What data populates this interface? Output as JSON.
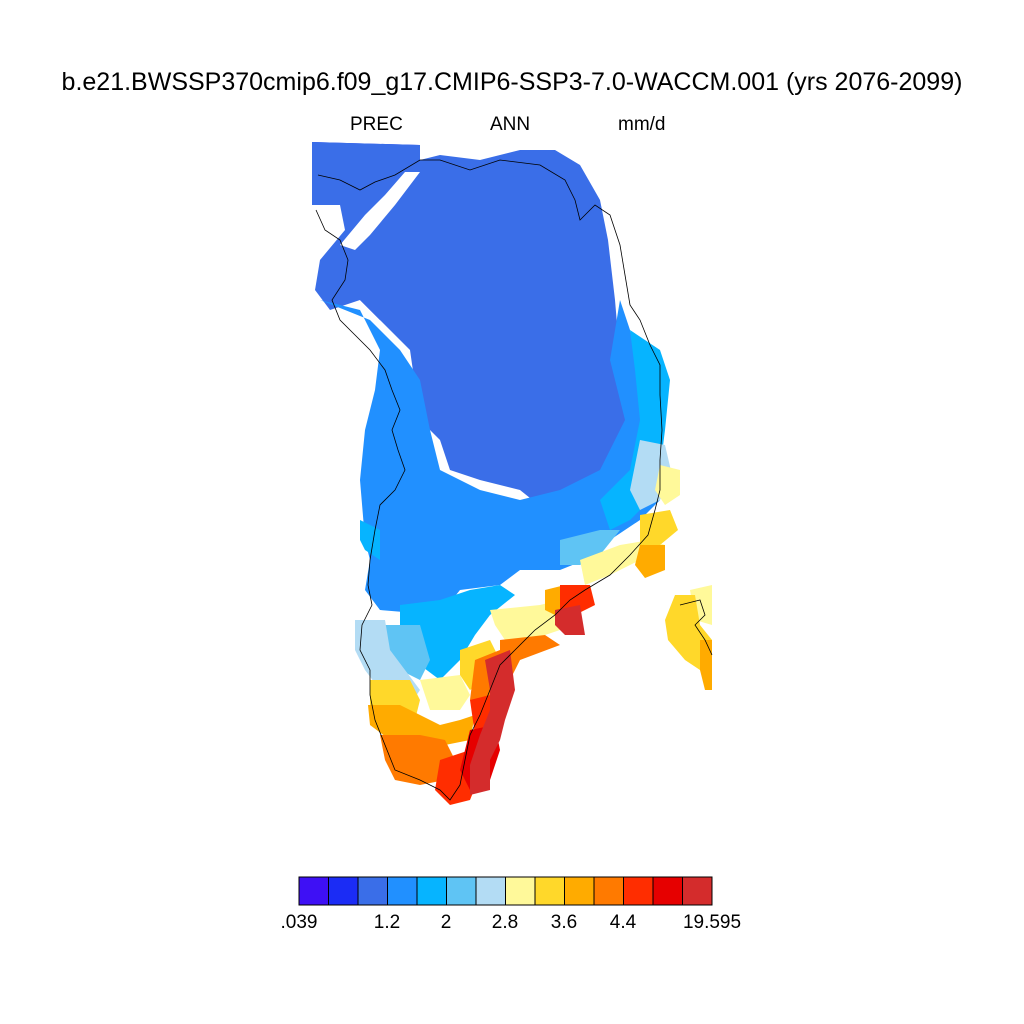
{
  "title": "b.e21.BWSSP370cmip6.f09_g17.CMIP6-SSP3-7.0-WACCM.001 (yrs 2076-2099)",
  "variable": "PREC",
  "season": "ANN",
  "units": "mm/d",
  "colorbar": {
    "colors": [
      "#3e10f5",
      "#1b2cf5",
      "#3a6ee8",
      "#2190ff",
      "#06b4ff",
      "#5fc4f4",
      "#b3dcf4",
      "#fff99a",
      "#ffd82a",
      "#ffab00",
      "#ff7a00",
      "#ff2d00",
      "#e60000",
      "#d42c2c"
    ],
    "labels": [
      {
        "text": ".039",
        "index": 0
      },
      {
        "text": "1.2",
        "index": 1.5
      },
      {
        "text": "2",
        "index": 2.5
      },
      {
        "text": "2.8",
        "index": 3.5
      },
      {
        "text": "3.6",
        "index": 4.5
      },
      {
        "text": "4.4",
        "index": 5.5
      },
      {
        "text": "19.595",
        "index": 7
      }
    ]
  }
}
